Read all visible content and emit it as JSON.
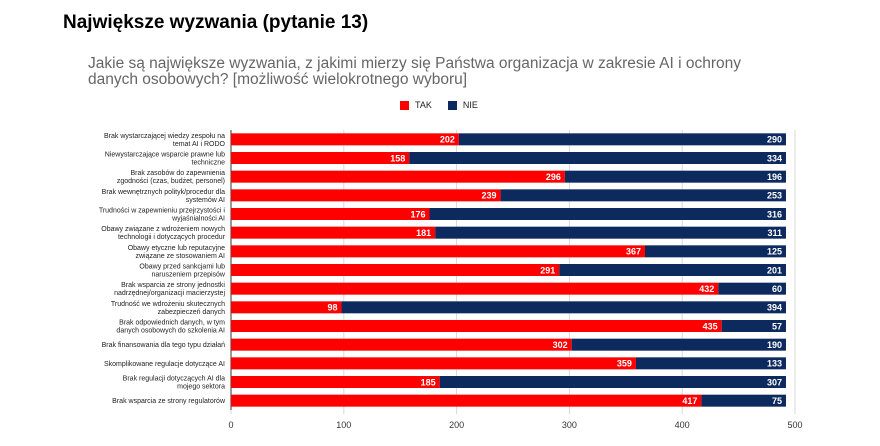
{
  "page": {
    "title": "Największe wyzwania (pytanie 13)"
  },
  "chart_data": {
    "type": "bar",
    "orientation": "horizontal",
    "stacked": true,
    "title": "Jakie są największe wyzwania, z jakimi mierzy się Państwa organizacja w zakresie AI i ochrony danych osobowych? [możliwość wielokrotnego wyboru]",
    "xlim": [
      0,
      500
    ],
    "xticks": [
      "0",
      "100",
      "200",
      "300",
      "400",
      "500"
    ],
    "legend_position": "top",
    "categories": [
      [
        "Brak wystarczającej wiedzy zespołu na",
        "temat AI i RODO"
      ],
      [
        "Niewystarczające wsparcie prawne lub",
        "techniczne"
      ],
      [
        "Brak zasobów do zapewnienia",
        "zgodności (czas, budżet, personel)"
      ],
      [
        "Brak wewnętrznych polityk/procedur dla",
        "systemów AI"
      ],
      [
        "Trudności w zapewnieniu przejrzystości i",
        "wyjaśnialności AI"
      ],
      [
        "Obawy związane z wdrożeniem nowych",
        "technologii i dotyczących procedur"
      ],
      [
        "Obawy etyczne lub reputacyjne",
        "związane ze stosowaniem AI"
      ],
      [
        "Obawy przed sankcjami lub",
        "naruszeniem przepisów"
      ],
      [
        "Brak wsparcia ze strony jednostki",
        "nadrzędnej/organizacji macierzystej"
      ],
      [
        "Trudność we wdrożeniu skutecznych",
        "zabezpieczeń danych"
      ],
      [
        "Brak odpowiednich danych, w tym",
        "danych osobowych do szkolenia AI"
      ],
      [
        "Brak finansowania dla tego typu działań"
      ],
      [
        "Skomplikowane regulacje dotyczące AI"
      ],
      [
        "Brak regulacji dotyczących AI dla",
        "mojego sektora"
      ],
      [
        "Brak wsparcia ze strony regulatorów"
      ]
    ],
    "series": [
      {
        "name": "TAK",
        "color": "#ff0000",
        "values": [
          202,
          158,
          296,
          239,
          176,
          181,
          367,
          291,
          432,
          98,
          435,
          302,
          359,
          185,
          417
        ]
      },
      {
        "name": "NIE",
        "color": "#0d2a5f",
        "values": [
          290,
          334,
          196,
          253,
          316,
          311,
          125,
          201,
          60,
          394,
          57,
          190,
          133,
          307,
          75
        ]
      }
    ]
  }
}
